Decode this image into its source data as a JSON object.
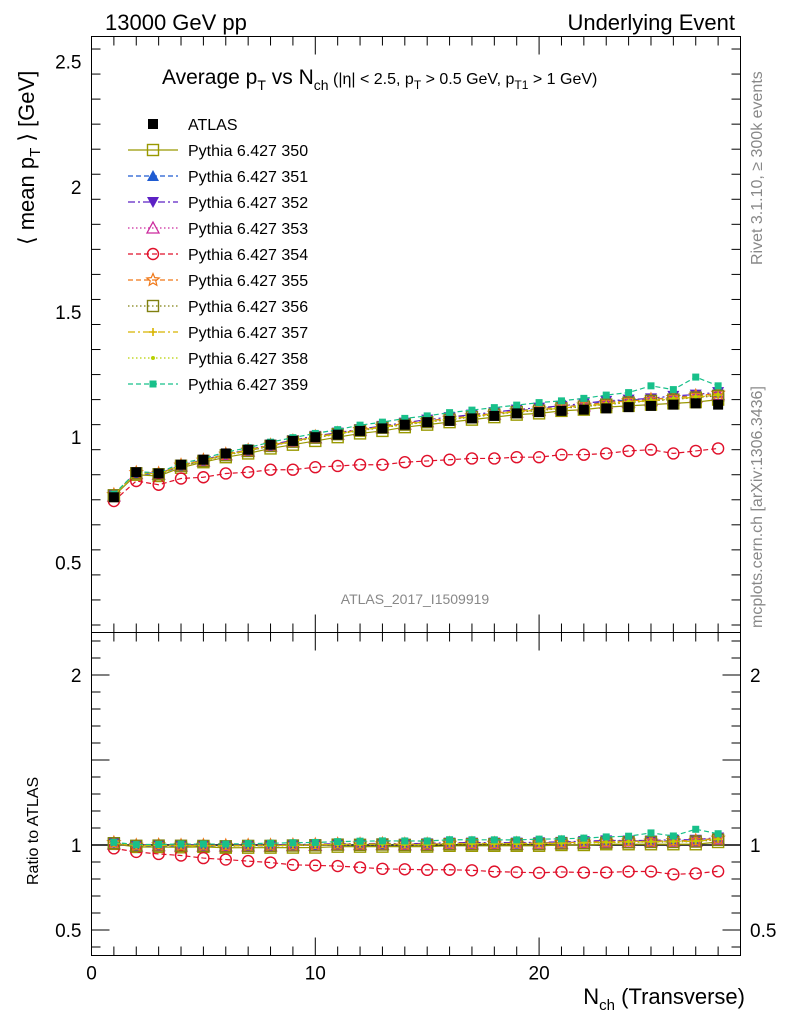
{
  "header": {
    "left": "13000 GeV pp",
    "right": "Underlying Event"
  },
  "side_labels": {
    "rivet": "Rivet 3.1.10, ≥ 300k events",
    "mcplots": "mcplots.cern.ch [arXiv:1306.3436]"
  },
  "watermark": "ATLAS_2017_I1509919",
  "chart_data": [
    {
      "type": "scatter",
      "panel": "main",
      "title": "Average p_T vs N_ch (|η| < 2.5, p_T > 0.5 GeV, p_T1 > 1 GeV)",
      "ylabel": "⟨ mean p_T ⟩ [GeV]",
      "xlabel": "N_ch (Transverse)",
      "xlim": [
        0,
        29
      ],
      "ylim": [
        0.22,
        2.6
      ],
      "x_ticks": [
        "0",
        "10",
        "20"
      ],
      "y_ticks": [
        "0.5",
        "1",
        "1.5",
        "2",
        "2.5"
      ],
      "legend_position": "top-left",
      "x": [
        1,
        2,
        3,
        4,
        5,
        6,
        7,
        8,
        9,
        10,
        11,
        12,
        13,
        14,
        15,
        16,
        17,
        18,
        19,
        20,
        21,
        22,
        23,
        24,
        25,
        26,
        27,
        28
      ],
      "series": [
        {
          "name": "ATLAS",
          "color": "#000000",
          "marker": "square-filled",
          "line": "none",
          "values": [
            0.76,
            0.86,
            0.855,
            0.89,
            0.91,
            0.935,
            0.95,
            0.97,
            0.985,
            1.0,
            1.01,
            1.025,
            1.035,
            1.05,
            1.06,
            1.065,
            1.075,
            1.085,
            1.095,
            1.1,
            1.105,
            1.11,
            1.115,
            1.12,
            1.125,
            1.13,
            1.135,
            1.13
          ]
        },
        {
          "name": "Pythia 6.427 350",
          "color": "#999900",
          "marker": "square-open",
          "line": "solid",
          "values": [
            0.765,
            0.85,
            0.845,
            0.878,
            0.9,
            0.92,
            0.935,
            0.955,
            0.97,
            0.985,
            1.0,
            1.015,
            1.025,
            1.04,
            1.05,
            1.06,
            1.07,
            1.08,
            1.09,
            1.095,
            1.105,
            1.11,
            1.12,
            1.125,
            1.13,
            1.135,
            1.14,
            1.15
          ]
        },
        {
          "name": "Pythia 6.427 351",
          "color": "#1f5bd1",
          "marker": "triangle-up-filled",
          "line": "dashed",
          "values": [
            0.77,
            0.855,
            0.85,
            0.885,
            0.905,
            0.93,
            0.945,
            0.965,
            0.985,
            1.0,
            1.015,
            1.03,
            1.04,
            1.055,
            1.065,
            1.075,
            1.085,
            1.095,
            1.105,
            1.115,
            1.12,
            1.13,
            1.14,
            1.15,
            1.15,
            1.16,
            1.165,
            1.175
          ]
        },
        {
          "name": "Pythia 6.427 352",
          "color": "#5c21c4",
          "marker": "triangle-down-filled",
          "line": "dashdot",
          "values": [
            0.77,
            0.86,
            0.855,
            0.888,
            0.91,
            0.932,
            0.95,
            0.97,
            0.988,
            1.005,
            1.018,
            1.032,
            1.045,
            1.058,
            1.07,
            1.08,
            1.09,
            1.1,
            1.11,
            1.118,
            1.125,
            1.135,
            1.145,
            1.15,
            1.155,
            1.165,
            1.17,
            1.18
          ]
        },
        {
          "name": "Pythia 6.427 353",
          "color": "#cc2a9e",
          "marker": "triangle-up-open",
          "line": "dotted",
          "values": [
            0.765,
            0.855,
            0.852,
            0.885,
            0.905,
            0.93,
            0.945,
            0.965,
            0.982,
            0.998,
            1.012,
            1.028,
            1.038,
            1.052,
            1.062,
            1.072,
            1.082,
            1.092,
            1.1,
            1.108,
            1.115,
            1.125,
            1.135,
            1.14,
            1.148,
            1.155,
            1.16,
            1.17
          ]
        },
        {
          "name": "Pythia 6.427 354",
          "color": "#e0102a",
          "marker": "circle-open",
          "line": "dashed",
          "values": [
            0.745,
            0.825,
            0.81,
            0.835,
            0.84,
            0.855,
            0.86,
            0.87,
            0.87,
            0.88,
            0.885,
            0.89,
            0.89,
            0.9,
            0.905,
            0.91,
            0.915,
            0.915,
            0.92,
            0.92,
            0.93,
            0.93,
            0.935,
            0.945,
            0.95,
            0.935,
            0.945,
            0.955
          ]
        },
        {
          "name": "Pythia 6.427 355",
          "color": "#f07818",
          "marker": "star-open",
          "line": "dashed",
          "values": [
            0.77,
            0.858,
            0.855,
            0.888,
            0.908,
            0.932,
            0.948,
            0.968,
            0.985,
            1.002,
            1.015,
            1.03,
            1.042,
            1.055,
            1.065,
            1.075,
            1.085,
            1.095,
            1.105,
            1.112,
            1.12,
            1.128,
            1.138,
            1.145,
            1.15,
            1.158,
            1.165,
            1.175
          ]
        },
        {
          "name": "Pythia 6.427 356",
          "color": "#808010",
          "marker": "square-open",
          "line": "dotted",
          "values": [
            0.768,
            0.856,
            0.852,
            0.886,
            0.905,
            0.928,
            0.945,
            0.965,
            0.982,
            0.998,
            1.012,
            1.026,
            1.038,
            1.05,
            1.06,
            1.07,
            1.08,
            1.09,
            1.1,
            1.106,
            1.115,
            1.122,
            1.13,
            1.138,
            1.145,
            1.15,
            1.158,
            1.165
          ]
        },
        {
          "name": "Pythia 6.427 357",
          "color": "#d8b400",
          "marker": "cross-small",
          "line": "dashdot",
          "values": [
            0.768,
            0.857,
            0.853,
            0.886,
            0.906,
            0.93,
            0.946,
            0.966,
            0.983,
            1.0,
            1.013,
            1.028,
            1.04,
            1.052,
            1.062,
            1.072,
            1.082,
            1.092,
            1.102,
            1.108,
            1.116,
            1.124,
            1.132,
            1.14,
            1.146,
            1.152,
            1.16,
            1.168
          ]
        },
        {
          "name": "Pythia 6.427 358",
          "color": "#b8d000",
          "marker": "dot",
          "line": "dotted",
          "values": [
            0.768,
            0.857,
            0.853,
            0.887,
            0.907,
            0.93,
            0.947,
            0.967,
            0.984,
            1.0,
            1.014,
            1.028,
            1.04,
            1.053,
            1.063,
            1.073,
            1.083,
            1.093,
            1.103,
            1.11,
            1.118,
            1.126,
            1.134,
            1.142,
            1.148,
            1.155,
            1.162,
            1.17
          ]
        },
        {
          "name": "Pythia 6.427 359",
          "color": "#18c08a",
          "marker": "square-filled-small",
          "line": "dashed",
          "values": [
            0.772,
            0.862,
            0.858,
            0.895,
            0.915,
            0.94,
            0.958,
            0.98,
            0.998,
            1.015,
            1.03,
            1.048,
            1.06,
            1.075,
            1.085,
            1.098,
            1.108,
            1.118,
            1.128,
            1.138,
            1.145,
            1.155,
            1.168,
            1.178,
            1.205,
            1.19,
            1.24,
            1.205
          ]
        }
      ]
    },
    {
      "type": "scatter",
      "panel": "ratio",
      "ylabel": "Ratio to ATLAS",
      "xlabel": "N_ch (Transverse)",
      "xlim": [
        0,
        29
      ],
      "ylim": [
        0.35,
        2.25
      ],
      "x_ticks": [
        "0",
        "10",
        "20"
      ],
      "y_ticks": [
        "0.5",
        "1",
        "2"
      ],
      "reference_line": 1
    }
  ]
}
